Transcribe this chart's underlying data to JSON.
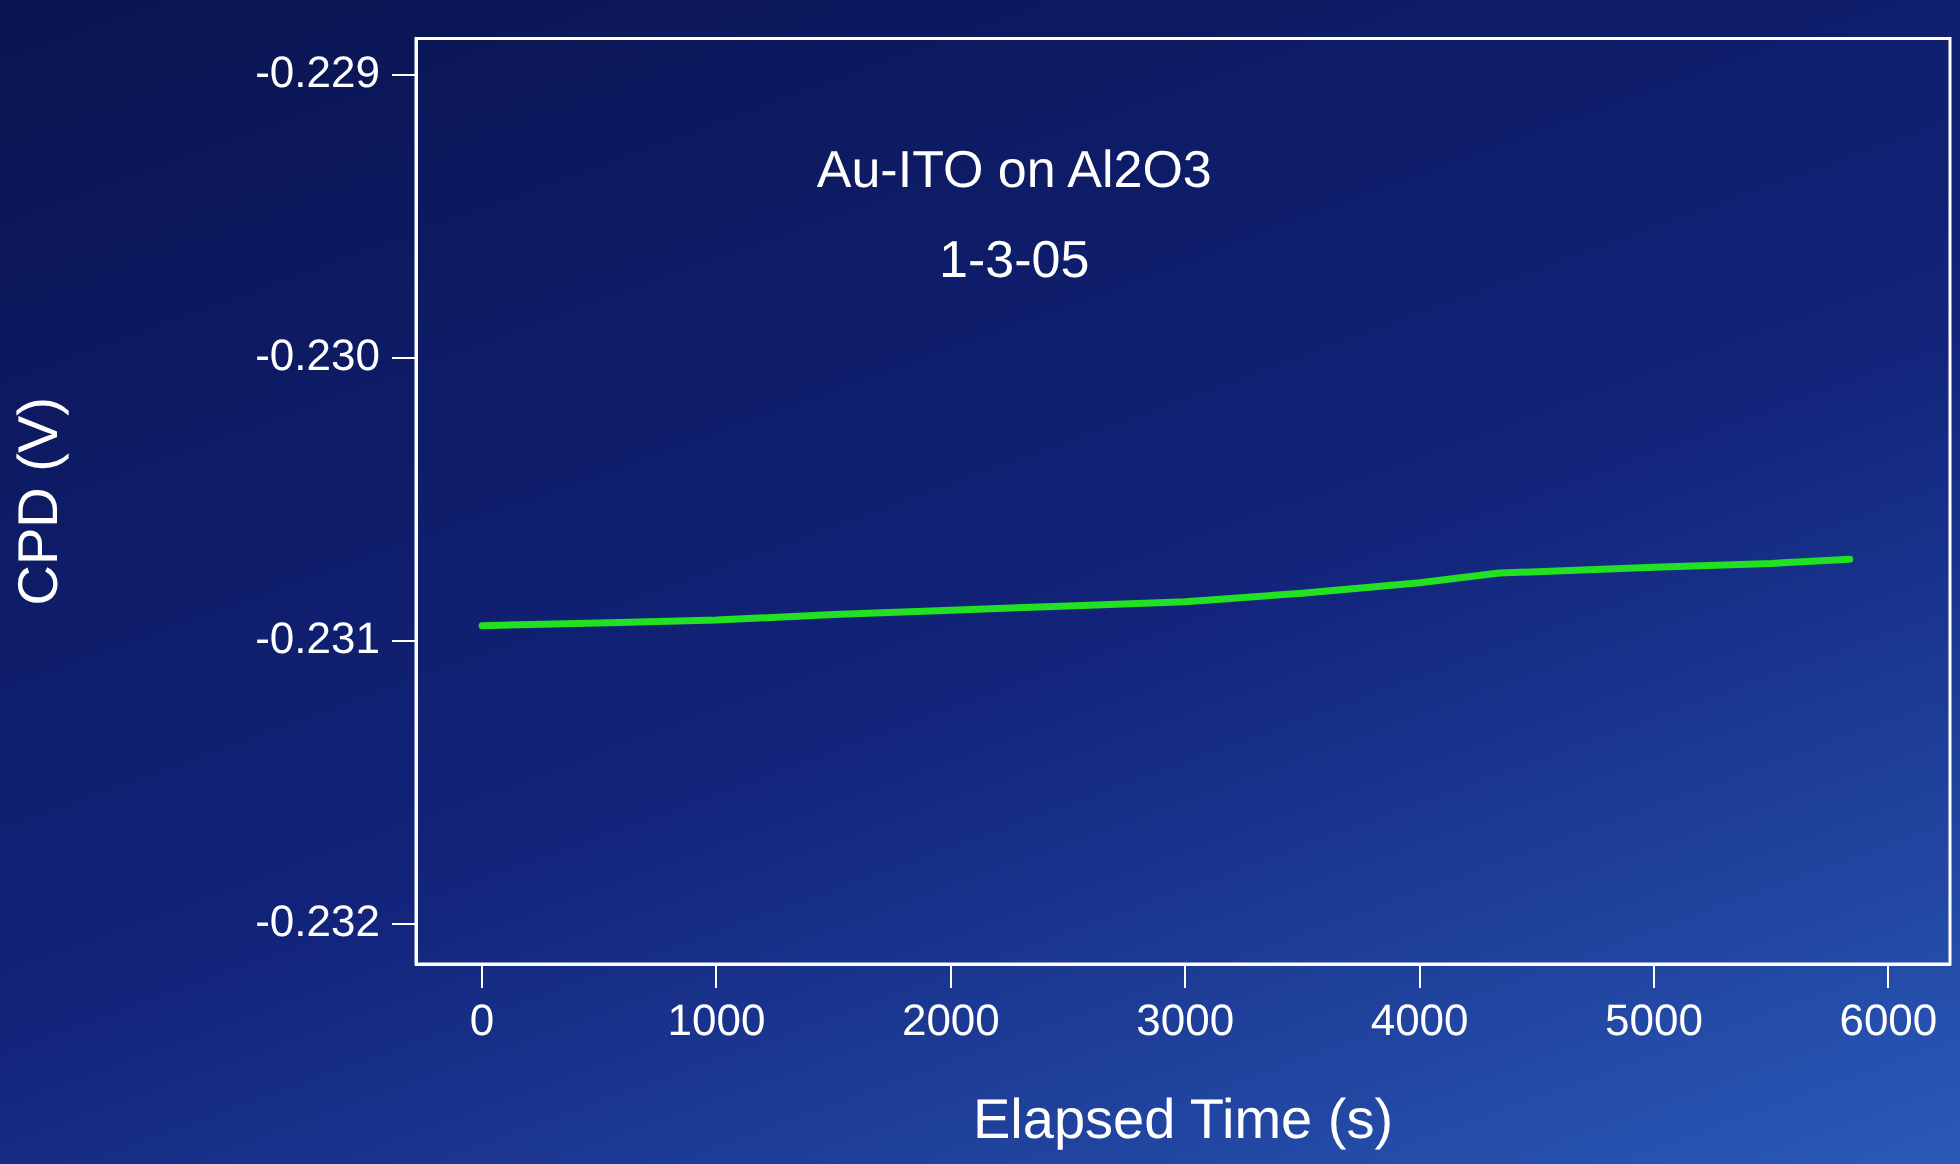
{
  "chart_data": {
    "type": "line",
    "title": "Au-ITO on Al2O3",
    "subtitle": "1-3-05",
    "xlabel": "Elapsed Time (s)",
    "ylabel": "CPD (V)",
    "x": [
      0,
      500,
      1000,
      1500,
      2000,
      2500,
      3000,
      3500,
      4000,
      4340,
      5000,
      5500,
      5835
    ],
    "series": [
      {
        "color": "#22e022",
        "values": [
          -0.230945,
          -0.230935,
          -0.230925,
          -0.230905,
          -0.23089,
          -0.230875,
          -0.23086,
          -0.23083,
          -0.230793,
          -0.230759,
          -0.230738,
          -0.230725,
          -0.23071
        ]
      }
    ],
    "xlim": [
      -282,
      6263
    ],
    "ylim": [
      -0.23214,
      -0.22887
    ],
    "xticks": [
      0,
      1000,
      2000,
      3000,
      4000,
      5000,
      6000
    ],
    "yticks": [
      -0.232,
      -0.231,
      {
        "value": -0.23,
        "label": "-0.230"
      },
      -0.229
    ],
    "grid": false,
    "legend": false,
    "marker": "none",
    "line_style": "solid"
  }
}
